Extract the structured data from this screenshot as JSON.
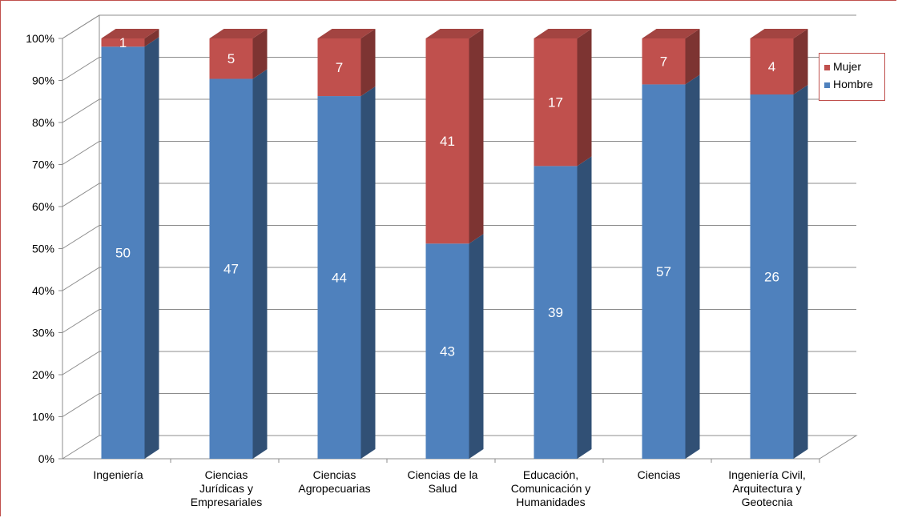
{
  "chart_data": {
    "type": "bar",
    "stacked": "percent",
    "three_d": true,
    "categories": [
      [
        "Ingeniería"
      ],
      [
        "Ciencias",
        "Jurídicas y",
        "Empresariales"
      ],
      [
        "Ciencias",
        "Agropecuarias"
      ],
      [
        "Ciencias de la",
        "Salud"
      ],
      [
        "Educación,",
        "Comunicación y",
        "Humanidades"
      ],
      [
        "Ciencias"
      ],
      [
        "Ingeniería Civil,",
        "Arquitectura y",
        "Geotecnia"
      ]
    ],
    "series": [
      {
        "name": "Hombre",
        "values": [
          50,
          47,
          44,
          43,
          39,
          57,
          26
        ],
        "color": "#4f81bd"
      },
      {
        "name": "Mujer",
        "values": [
          1,
          5,
          7,
          41,
          17,
          7,
          4
        ],
        "color": "#c0504d"
      }
    ],
    "yticks": [
      "0%",
      "10%",
      "20%",
      "30%",
      "40%",
      "50%",
      "60%",
      "70%",
      "80%",
      "90%",
      "100%"
    ],
    "ylim": [
      0,
      100
    ],
    "grid": true,
    "legend_position": "right"
  }
}
